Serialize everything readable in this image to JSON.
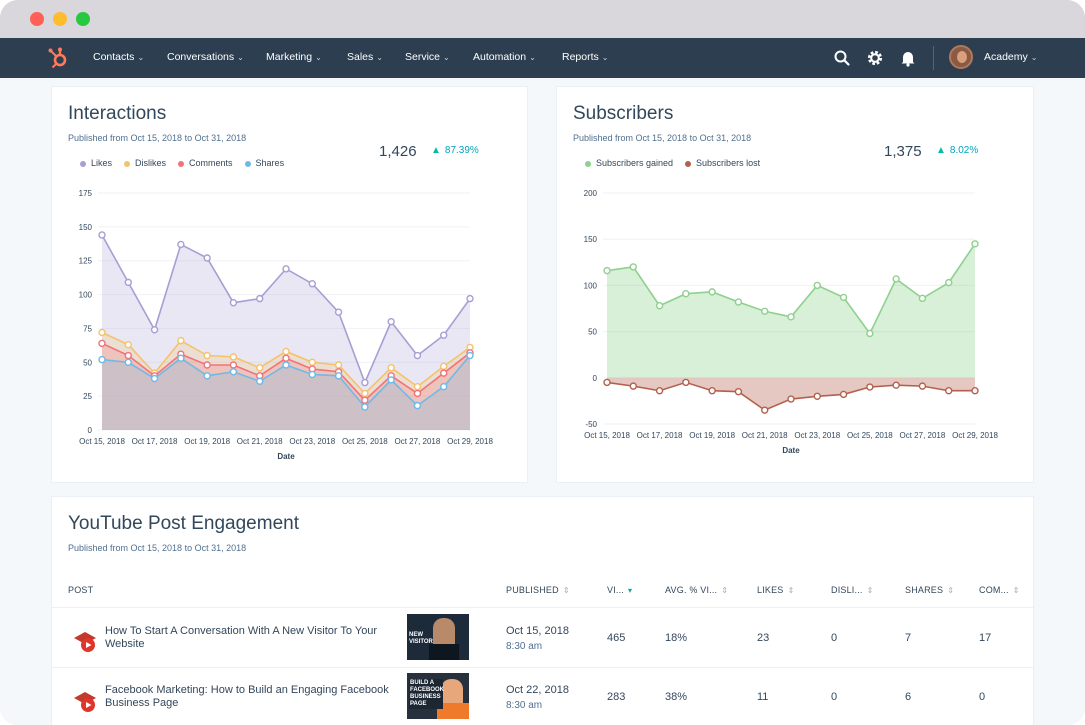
{
  "window": {
    "controls": [
      "close",
      "minimize",
      "zoom"
    ]
  },
  "nav": {
    "items": [
      "Contacts",
      "Conversations",
      "Marketing",
      "Sales",
      "Service",
      "Automation",
      "Reports"
    ],
    "chevron": "⌄",
    "icons": [
      "search-icon",
      "gear-icon",
      "bell-icon"
    ],
    "account_label": "Academy"
  },
  "interactions": {
    "title": "Interactions",
    "subtitle": "Published from Oct 15, 2018 to Oct 31, 2018",
    "kpi": "1,426",
    "change": "87.39%",
    "legend": [
      "Likes",
      "Dislikes",
      "Comments",
      "Shares"
    ],
    "xlabel": "Date"
  },
  "subscribers": {
    "title": "Subscribers",
    "subtitle": "Published from Oct 15, 2018 to Oct 31, 2018",
    "kpi": "1,375",
    "change": "8.02%",
    "legend": [
      "Subscribers gained",
      "Subscribers lost"
    ],
    "xlabel": "Date"
  },
  "engagement": {
    "title": "YouTube Post Engagement",
    "subtitle": "Published from Oct 15, 2018 to Oct 31, 2018",
    "columns": [
      "POST",
      "PUBLISHED",
      "VI...",
      "AVG. % VI...",
      "LIKES",
      "DISLI...",
      "SHARES",
      "COM..."
    ],
    "rows": [
      {
        "title": "How To Start A Conversation With A New Visitor To Your Website",
        "thumb_text": "NEW VISITOR",
        "date": "Oct 15, 2018",
        "time": "8:30 am",
        "views": "465",
        "avg_view": "18%",
        "likes": "23",
        "dislikes": "0",
        "shares": "7",
        "comments": "17"
      },
      {
        "title": "Facebook Marketing: How to Build an Engaging Facebook Business Page",
        "thumb_text": "BUILD A FACEBOOK BUSINESS PAGE",
        "date": "Oct 22, 2018",
        "time": "8:30 am",
        "views": "283",
        "avg_view": "38%",
        "likes": "11",
        "dislikes": "0",
        "shares": "6",
        "comments": "0"
      }
    ]
  },
  "colors": {
    "likes": "#a79ed4",
    "dislikes": "#f5c26b",
    "comments": "#f2727a",
    "shares": "#6fb9e8",
    "gained": "#8fd08f",
    "lost": "#b5604d",
    "accent": "#ff7a59",
    "positive": "#00bda5"
  },
  "chart_data": [
    {
      "type": "area",
      "title": "Interactions",
      "xlabel": "Date",
      "ylabel": "",
      "ylim": [
        0,
        175
      ],
      "yticks": [
        0,
        25,
        50,
        75,
        100,
        125,
        150,
        175
      ],
      "x": [
        "Oct 15, 2018",
        "Oct 16, 2018",
        "Oct 17, 2018",
        "Oct 18, 2018",
        "Oct 19, 2018",
        "Oct 20, 2018",
        "Oct 21, 2018",
        "Oct 22, 2018",
        "Oct 23, 2018",
        "Oct 24, 2018",
        "Oct 25, 2018",
        "Oct 26, 2018",
        "Oct 27, 2018",
        "Oct 28, 2018",
        "Oct 29, 2018"
      ],
      "xtick_labels": [
        "Oct 15, 2018",
        "Oct 17, 2018",
        "Oct 19, 2018",
        "Oct 21, 2018",
        "Oct 23, 2018",
        "Oct 25, 2018",
        "Oct 27, 2018",
        "Oct 29, 2018"
      ],
      "grid": true,
      "legend_position": "top-left",
      "series": [
        {
          "name": "Likes",
          "values": [
            144,
            109,
            74,
            137,
            127,
            94,
            97,
            119,
            108,
            87,
            35,
            80,
            55,
            70,
            97
          ]
        },
        {
          "name": "Dislikes",
          "values": [
            72,
            63,
            42,
            66,
            55,
            54,
            46,
            58,
            50,
            48,
            27,
            46,
            32,
            47,
            61
          ]
        },
        {
          "name": "Comments",
          "values": [
            64,
            55,
            40,
            56,
            48,
            48,
            40,
            53,
            45,
            43,
            22,
            40,
            27,
            42,
            57
          ]
        },
        {
          "name": "Shares",
          "values": [
            52,
            50,
            38,
            53,
            40,
            43,
            36,
            48,
            41,
            40,
            17,
            37,
            18,
            32,
            55
          ]
        }
      ]
    },
    {
      "type": "area",
      "title": "Subscribers",
      "xlabel": "Date",
      "ylabel": "",
      "ylim": [
        -50,
        200
      ],
      "yticks": [
        -50,
        0,
        50,
        100,
        150,
        200
      ],
      "x": [
        "Oct 15, 2018",
        "Oct 16, 2018",
        "Oct 17, 2018",
        "Oct 18, 2018",
        "Oct 19, 2018",
        "Oct 20, 2018",
        "Oct 21, 2018",
        "Oct 22, 2018",
        "Oct 23, 2018",
        "Oct 24, 2018",
        "Oct 25, 2018",
        "Oct 26, 2018",
        "Oct 27, 2018",
        "Oct 28, 2018",
        "Oct 29, 2018"
      ],
      "xtick_labels": [
        "Oct 15, 2018",
        "Oct 17, 2018",
        "Oct 19, 2018",
        "Oct 21, 2018",
        "Oct 23, 2018",
        "Oct 25, 2018",
        "Oct 27, 2018",
        "Oct 29, 2018"
      ],
      "grid": true,
      "legend_position": "top-left",
      "series": [
        {
          "name": "Subscribers gained",
          "values": [
            116,
            120,
            78,
            91,
            93,
            82,
            72,
            66,
            100,
            87,
            48,
            107,
            86,
            103,
            145
          ]
        },
        {
          "name": "Subscribers lost",
          "values": [
            -5,
            -9,
            -14,
            -5,
            -14,
            -15,
            -35,
            -23,
            -20,
            -18,
            -10,
            -8,
            -9,
            -14,
            -14
          ]
        }
      ]
    }
  ]
}
